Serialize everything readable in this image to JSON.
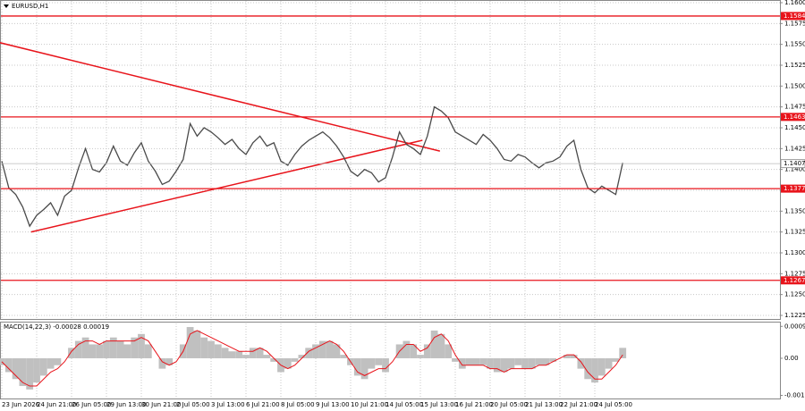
{
  "chart_data": [
    {
      "type": "price",
      "title": "EURUSD,H1",
      "categories": [
        "23 Jun 2026",
        null,
        null,
        null,
        null,
        "24 Jun 21:00",
        null,
        null,
        null,
        null,
        "26 Jun 05:00",
        null,
        null,
        null,
        null,
        "29 Jun 13:00",
        null,
        null,
        null,
        null,
        "30 Jun 21:00",
        null,
        null,
        null,
        null,
        "2 Jul 05:00",
        null,
        null,
        null,
        null,
        "3 Jul 13:00",
        null,
        null,
        null,
        null,
        "6 Jul 21:00",
        null,
        null,
        null,
        null,
        "8 Jul 05:00",
        null,
        null,
        null,
        null,
        "9 Jul 13:00",
        null,
        null,
        null,
        null,
        "10 Jul 21:00",
        null,
        null,
        null,
        null,
        "14 Jul 05:00",
        null,
        null,
        null,
        null,
        "15 Jul 13:00",
        null,
        null,
        null,
        null,
        "16 Jul 21:00",
        null,
        null,
        null,
        null,
        "20 Jul 05:00",
        null,
        null,
        null,
        null,
        "21 Jul 13:00",
        null,
        null,
        null,
        null,
        "22 Jul 21:00",
        null,
        null,
        null,
        null,
        "24 Jul 05:00",
        null,
        null,
        null,
        null
      ],
      "values": [
        1.141,
        1.1378,
        1.137,
        1.1355,
        1.1332,
        1.1345,
        1.1352,
        1.136,
        1.1345,
        1.1368,
        1.1375,
        1.1402,
        1.1425,
        1.14,
        1.1397,
        1.1408,
        1.1428,
        1.141,
        1.1405,
        1.142,
        1.1432,
        1.141,
        1.1398,
        1.1382,
        1.1386,
        1.1398,
        1.1412,
        1.1455,
        1.144,
        1.145,
        1.1445,
        1.1438,
        1.143,
        1.1436,
        1.1425,
        1.1418,
        1.1432,
        1.144,
        1.1428,
        1.1432,
        1.141,
        1.1405,
        1.1418,
        1.1428,
        1.1435,
        1.144,
        1.1445,
        1.1438,
        1.1428,
        1.1415,
        1.1398,
        1.1392,
        1.14,
        1.1396,
        1.1385,
        1.139,
        1.1415,
        1.1445,
        1.143,
        1.1425,
        1.1418,
        1.144,
        1.1475,
        1.147,
        1.1462,
        1.1445,
        1.144,
        1.1435,
        1.143,
        1.1442,
        1.1435,
        1.1425,
        1.1412,
        1.141,
        1.1418,
        1.1415,
        1.1408,
        1.1402,
        1.1408,
        1.141,
        1.1415,
        1.1428,
        1.1435,
        1.14,
        1.1378,
        1.1372,
        1.138,
        1.1375,
        1.137,
        1.1408
      ],
      "color": "#4a4a4a",
      "ylim": [
        1.12207,
        1.16032
      ],
      "yticks": [
        {
          "value": 1.16,
          "label": "1.1600"
        },
        {
          "value": 1.1575,
          "label": "1.1575"
        },
        {
          "value": 1.155,
          "label": "1.1550"
        },
        {
          "value": 1.1525,
          "label": "1.1525"
        },
        {
          "value": 1.15,
          "label": "1.1500"
        },
        {
          "value": 1.1475,
          "label": "1.1475"
        },
        {
          "value": 1.145,
          "label": "1.1450"
        },
        {
          "value": 1.1425,
          "label": "1.1425"
        },
        {
          "value": 1.14,
          "label": "1.1400"
        },
        {
          "value": 1.1375,
          "label": "1.1375"
        },
        {
          "value": 1.135,
          "label": "1.1350"
        },
        {
          "value": 1.1325,
          "label": "1.1325"
        },
        {
          "value": 1.13,
          "label": "1.1300"
        },
        {
          "value": 1.1275,
          "label": "1.1275"
        },
        {
          "value": 1.125,
          "label": "1.1250"
        },
        {
          "value": 1.1225,
          "label": "1.1225"
        }
      ],
      "grid": true,
      "levels": [
        1.1584,
        1.1463,
        1.1377,
        1.1267
      ],
      "level_color": "#e8141b",
      "current_price": 1.1407,
      "trendlines": [
        {
          "x": [
            -0.26,
            62.8
          ],
          "y": [
            1.1552,
            1.1422
          ]
        },
        {
          "x": [
            4.2,
            60.3
          ],
          "y": [
            1.1325,
            1.1435
          ]
        }
      ]
    },
    {
      "type": "macd",
      "title": "MACD(14,22,3) -0.00028 0.00019",
      "series": [
        {
          "color": "#c0c0c0",
          "values": [
            -0.0002,
            -0.0004,
            -0.0006,
            -0.0008,
            -0.0009,
            -0.0007,
            -0.0005,
            -0.0003,
            -0.0002,
            0.0,
            0.0003,
            0.0005,
            0.0006,
            0.0004,
            0.0004,
            0.0005,
            0.0006,
            0.0005,
            0.0004,
            0.0006,
            0.0007,
            0.0004,
            0.0,
            -0.0003,
            -0.0002,
            0.0,
            0.0004,
            0.0009,
            0.0008,
            0.0006,
            0.0005,
            0.0004,
            0.0003,
            0.0002,
            0.0002,
            0.0001,
            0.0003,
            0.0003,
            0.0001,
            -0.0001,
            -0.0004,
            -0.0003,
            -0.0001,
            0.0001,
            0.0003,
            0.0004,
            0.0005,
            0.0005,
            0.0004,
            0.0001,
            -0.0002,
            -0.0005,
            -0.0006,
            -0.0003,
            -0.0002,
            -0.0004,
            0.0,
            0.0004,
            0.0005,
            0.0004,
            0.0001,
            0.0004,
            0.0008,
            0.0007,
            0.0004,
            -0.0001,
            -0.0003,
            -0.0002,
            -0.0002,
            -0.0002,
            -0.0003,
            -0.0004,
            -0.0004,
            -0.0003,
            -0.0002,
            -0.0003,
            -0.0003,
            -0.0002,
            -0.0002,
            -0.0001,
            0.0,
            0.0001,
            0.0001,
            -0.0003,
            -0.0006,
            -0.0007,
            -0.0005,
            -0.0003,
            -0.0001,
            0.0003
          ]
        },
        {
          "color": "#e8141b",
          "values": [
            -0.0001,
            -0.0003,
            -0.0005,
            -0.0007,
            -0.0008,
            -0.0008,
            -0.0006,
            -0.0004,
            -0.0003,
            -0.0001,
            0.0002,
            0.0004,
            0.0005,
            0.0005,
            0.0004,
            0.0005,
            0.0005,
            0.0005,
            0.0005,
            0.0005,
            0.0006,
            0.0005,
            0.0002,
            -0.0001,
            -0.0002,
            -0.0001,
            0.0002,
            0.0007,
            0.0008,
            0.0007,
            0.0006,
            0.0005,
            0.0004,
            0.0003,
            0.0002,
            0.0002,
            0.0002,
            0.0003,
            0.0002,
            0.0,
            -0.0002,
            -0.0003,
            -0.0002,
            0.0,
            0.0002,
            0.0003,
            0.0004,
            0.0005,
            0.0004,
            0.0002,
            -0.0001,
            -0.0004,
            -0.0005,
            -0.0004,
            -0.0003,
            -0.0003,
            -0.0001,
            0.0002,
            0.0004,
            0.0004,
            0.0002,
            0.0003,
            0.0006,
            0.0007,
            0.0005,
            0.0001,
            -0.0002,
            -0.0002,
            -0.0002,
            -0.0002,
            -0.0003,
            -0.0003,
            -0.0004,
            -0.0003,
            -0.0003,
            -0.0003,
            -0.0003,
            -0.0002,
            -0.0002,
            -0.0001,
            0.0,
            0.0001,
            0.0001,
            -0.0001,
            -0.0004,
            -0.0006,
            -0.0006,
            -0.0004,
            -0.0002,
            0.0001
          ]
        }
      ],
      "ylim": [
        -0.00116,
        0.00103
      ],
      "yticks": [
        0.00092,
        {
          "value": 0,
          "label": "0.00"
        },
        -0.00107
      ]
    }
  ]
}
